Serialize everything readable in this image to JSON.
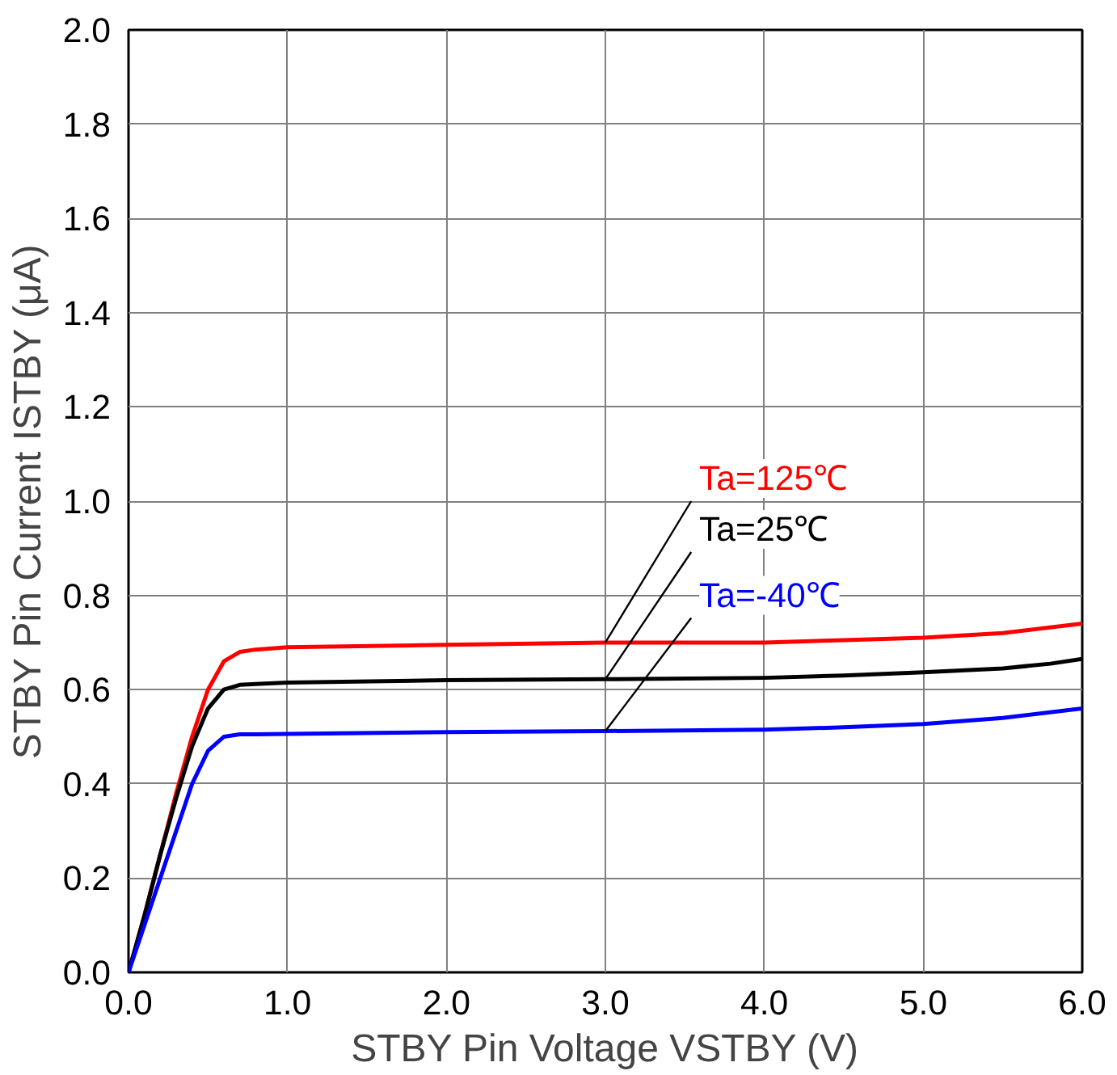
{
  "chart_data": {
    "type": "line",
    "xlabel": "STBY Pin Voltage VSTBY (V)",
    "ylabel": "STBY Pin Current ISTBY (μA)",
    "xlim": [
      0,
      6
    ],
    "ylim": [
      0,
      2
    ],
    "xticks": [
      {
        "value": 0,
        "label": "0.0"
      },
      {
        "value": 1,
        "label": "1.0"
      },
      {
        "value": 2,
        "label": "2.0"
      },
      {
        "value": 3,
        "label": "3.0"
      },
      {
        "value": 4,
        "label": "4.0"
      },
      {
        "value": 5,
        "label": "5.0"
      },
      {
        "value": 6,
        "label": "6.0"
      }
    ],
    "yticks": [
      {
        "value": 0,
        "label": "0.0"
      },
      {
        "value": 0.2,
        "label": "0.2"
      },
      {
        "value": 0.4,
        "label": "0.4"
      },
      {
        "value": 0.6,
        "label": "0.6"
      },
      {
        "value": 0.8,
        "label": "0.8"
      },
      {
        "value": 1.0,
        "label": "1.0"
      },
      {
        "value": 1.2,
        "label": "1.2"
      },
      {
        "value": 1.4,
        "label": "1.4"
      },
      {
        "value": 1.6,
        "label": "1.6"
      },
      {
        "value": 1.8,
        "label": "1.8"
      },
      {
        "value": 2.0,
        "label": "2.0"
      }
    ],
    "grid": true,
    "legend": false,
    "marker": "none",
    "line_style": "solid",
    "series": [
      {
        "name": "Ta=125℃",
        "color": "#ff0000",
        "x": [
          0,
          0.1,
          0.2,
          0.3,
          0.4,
          0.5,
          0.6,
          0.7,
          0.8,
          1.0,
          2.0,
          3.0,
          4.0,
          4.5,
          5.0,
          5.5,
          6.0
        ],
        "values": [
          0,
          0.12,
          0.25,
          0.38,
          0.5,
          0.6,
          0.66,
          0.68,
          0.685,
          0.69,
          0.695,
          0.7,
          0.7,
          0.705,
          0.71,
          0.72,
          0.74
        ]
      },
      {
        "name": "Ta=25℃",
        "color": "#000000",
        "x": [
          0,
          0.1,
          0.2,
          0.3,
          0.4,
          0.5,
          0.6,
          0.7,
          0.8,
          1.0,
          2.0,
          3.0,
          4.0,
          4.5,
          5.0,
          5.5,
          5.8,
          6.0
        ],
        "values": [
          0,
          0.12,
          0.25,
          0.37,
          0.48,
          0.56,
          0.6,
          0.61,
          0.612,
          0.615,
          0.62,
          0.622,
          0.625,
          0.63,
          0.637,
          0.645,
          0.655,
          0.665
        ]
      },
      {
        "name": "Ta=-40℃",
        "color": "#0000ff",
        "x": [
          0,
          0.1,
          0.2,
          0.3,
          0.4,
          0.5,
          0.6,
          0.7,
          0.8,
          1.0,
          2.0,
          3.0,
          4.0,
          4.5,
          5.0,
          5.5,
          6.0
        ],
        "values": [
          0,
          0.1,
          0.2,
          0.3,
          0.4,
          0.47,
          0.5,
          0.505,
          0.505,
          0.506,
          0.51,
          0.512,
          0.515,
          0.52,
          0.527,
          0.54,
          0.56
        ]
      }
    ]
  }
}
